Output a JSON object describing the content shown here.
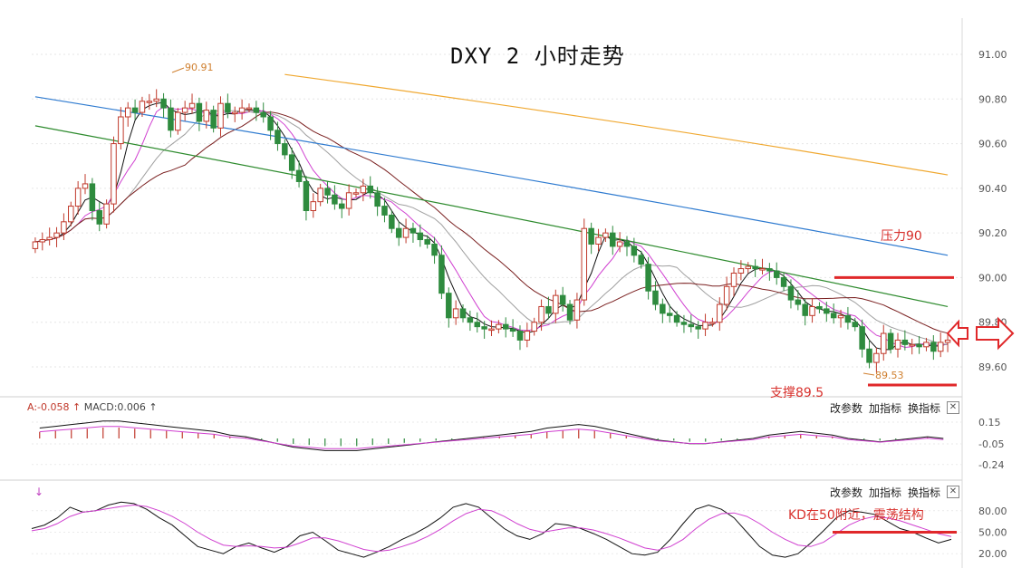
{
  "title": "DXY 2 小时走势",
  "price_axis": [
    "91.00",
    "90.80",
    "90.60",
    "90.40",
    "90.20",
    "90.00",
    "89.80",
    "89.60"
  ],
  "macd_axis": [
    "0.15",
    "-0.05",
    "-0.24"
  ],
  "kd_axis": [
    "80.00",
    "50.00",
    "20.00"
  ],
  "annotations": {
    "high_label": "90.91",
    "low_label": "89.53",
    "resistance": "压力90",
    "support": "支撑89.5",
    "kd_note": "KD在50附近，震荡结构"
  },
  "macd_label": {
    "prefix": "A:-0.058",
    "arrow1": "↑",
    "macd": "MACD:0.006",
    "arrow2": "↑"
  },
  "kd_marker": "↓",
  "toolbar": {
    "params": "改参数",
    "add": "加指标",
    "switch": "换指标",
    "close": "✕"
  },
  "colors": {
    "up": "#c0392b",
    "down": "#2e8b3e",
    "resistance": "#e0282a",
    "ma_blue": "#2f7bd0",
    "ma_orange": "#f0a830",
    "ma_green": "#2e8b2e"
  },
  "chart_data": [
    {
      "type": "candlestick",
      "title": "DXY 2 小时走势",
      "ylim": [
        89.5,
        91.1
      ],
      "levels": {
        "resistance": 90.0,
        "support": 89.5
      },
      "extremes": {
        "high": 90.91,
        "low": 89.53
      },
      "closes": [
        90.16,
        90.17,
        90.18,
        90.2,
        90.25,
        90.32,
        90.4,
        90.42,
        90.3,
        90.24,
        90.33,
        90.6,
        90.72,
        90.76,
        90.74,
        90.79,
        90.79,
        90.8,
        90.76,
        90.66,
        90.74,
        90.76,
        90.78,
        90.7,
        90.75,
        90.67,
        90.78,
        90.74,
        90.74,
        90.76,
        90.76,
        90.74,
        90.72,
        90.66,
        90.6,
        90.55,
        90.48,
        90.43,
        90.3,
        90.34,
        90.4,
        90.37,
        90.33,
        90.31,
        90.38,
        90.38,
        90.41,
        90.38,
        90.32,
        90.28,
        90.22,
        90.18,
        90.22,
        90.2,
        90.17,
        90.15,
        90.1,
        89.93,
        89.82,
        89.86,
        89.82,
        89.8,
        89.78,
        89.77,
        89.77,
        89.79,
        89.77,
        89.76,
        89.72,
        89.76,
        89.8,
        89.87,
        89.84,
        89.92,
        89.88,
        89.81,
        89.9,
        90.22,
        90.15,
        90.18,
        90.2,
        90.14,
        90.16,
        90.14,
        90.1,
        90.06,
        89.94,
        89.88,
        89.84,
        89.83,
        89.8,
        89.79,
        89.78,
        89.77,
        89.8,
        89.8,
        89.88,
        89.96,
        90.02,
        90.04,
        90.05,
        90.04,
        90.04,
        90.03,
        90.0,
        89.96,
        89.9,
        89.88,
        89.83,
        89.87,
        89.86,
        89.84,
        89.82,
        89.83,
        89.8,
        89.78,
        89.68,
        89.62,
        89.66,
        89.75,
        89.68,
        89.72,
        89.7,
        89.7,
        89.69,
        89.71,
        89.67,
        89.71,
        89.72
      ],
      "ma_series": [
        {
          "color": "#f0a830",
          "start": 90.91,
          "end": 90.46,
          "from_index": 35
        },
        {
          "color": "#2f7bd0",
          "start": 90.81,
          "end": 90.1
        },
        {
          "color": "#2e8b2e",
          "start": 90.68,
          "end": 89.87
        }
      ]
    },
    {
      "type": "bar",
      "title": "MACD",
      "ylim": [
        -0.3,
        0.2
      ],
      "values": [
        0.06,
        0.07,
        0.08,
        0.09,
        0.1,
        0.1,
        0.09,
        0.08,
        0.07,
        0.06,
        0.05,
        0.04,
        0.02,
        0.01,
        -0.01,
        -0.03,
        -0.05,
        -0.06,
        -0.07,
        -0.07,
        -0.07,
        -0.06,
        -0.05,
        -0.04,
        -0.03,
        -0.02,
        -0.01,
        0.0,
        0.01,
        0.02,
        0.03,
        0.04,
        0.06,
        0.07,
        0.08,
        0.07,
        0.05,
        0.03,
        0.01,
        -0.01,
        -0.02,
        -0.03,
        -0.03,
        -0.02,
        -0.01,
        0.0,
        0.02,
        0.03,
        0.04,
        0.03,
        0.02,
        0.0,
        -0.01,
        -0.02,
        -0.01,
        0.0,
        0.01,
        0.0
      ]
    },
    {
      "type": "line",
      "title": "KD",
      "ylim": [
        0,
        100
      ],
      "series": [
        {
          "values": [
            55,
            60,
            70,
            85,
            78,
            80,
            88,
            92,
            90,
            82,
            70,
            60,
            45,
            30,
            25,
            20,
            30,
            35,
            28,
            22,
            30,
            45,
            50,
            38,
            25,
            20,
            15,
            22,
            30,
            40,
            48,
            58,
            70,
            85,
            90,
            85,
            70,
            55,
            45,
            40,
            48,
            62,
            60,
            55,
            48,
            40,
            30,
            20,
            18,
            22,
            40,
            62,
            82,
            88,
            82,
            70,
            50,
            30,
            18,
            15,
            20,
            35,
            52,
            70,
            80,
            78,
            75,
            65,
            55,
            50,
            42,
            35,
            40
          ]
        },
        {
          "values": [
            52,
            55,
            62,
            72,
            78,
            80,
            83,
            86,
            88,
            86,
            80,
            72,
            62,
            50,
            40,
            32,
            30,
            31,
            30,
            28,
            29,
            35,
            42,
            42,
            38,
            32,
            26,
            23,
            25,
            30,
            36,
            44,
            54,
            66,
            76,
            82,
            80,
            72,
            62,
            54,
            50,
            53,
            56,
            56,
            53,
            48,
            42,
            35,
            28,
            25,
            30,
            40,
            55,
            68,
            76,
            77,
            72,
            62,
            50,
            40,
            32,
            30,
            36,
            48,
            60,
            68,
            72,
            70,
            66,
            60,
            54,
            48,
            44
          ]
        }
      ]
    }
  ]
}
